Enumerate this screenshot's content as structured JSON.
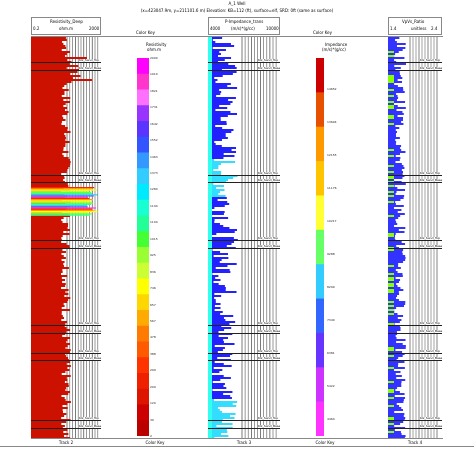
{
  "header": {
    "well_name": "A_1 Well",
    "info_line": "(x=423047.9m, y=211101.6 m) Elevation: KB=112 (ft), surface=elf, SRD: 0ft (same as surface)"
  },
  "tracks": [
    {
      "id": "track2",
      "log_name": "Resistivity_Deep",
      "unit": "ohm.m",
      "scale_left": "0.2",
      "scale_right": "2000",
      "footer": "Track 2"
    },
    {
      "id": "colorkey1",
      "title": "Color Key",
      "property": "Resistivity",
      "unit": "ohm.m",
      "footer": "Color Key",
      "ticks": [
        "2000",
        "1910",
        "1821",
        "1731",
        "1642",
        "1552",
        "1463",
        "1373",
        "1284",
        "1194",
        "1104",
        "1015",
        "925",
        "836",
        "746",
        "657",
        "567",
        "478",
        "388",
        "299",
        "209",
        "120",
        "30",
        "2"
      ],
      "colors": [
        "#ff00ff",
        "#ff35cc",
        "#ff70ff",
        "#9933ff",
        "#5a35ff",
        "#3355ff",
        "#3399ff",
        "#33ccff",
        "#00eaff",
        "#19ffd4",
        "#22ff99",
        "#44ff33",
        "#99ff33",
        "#ccff33",
        "#ffff00",
        "#ffd700",
        "#ffaa00",
        "#ff7a00",
        "#ff5a00",
        "#ff3300",
        "#ee2000",
        "#dd1400",
        "#cc0000",
        "#bb0000"
      ]
    },
    {
      "id": "track3",
      "log_name": "P-Impedance_trans",
      "unit": "(m/s)*(g/cc)",
      "scale_left": "4000",
      "scale_right": "10000",
      "footer": "Track 3"
    },
    {
      "id": "colorkey2",
      "title": "Color Key",
      "property": "Impedance",
      "unit": "(m/s)*(g/cc)",
      "footer": "Color Key",
      "ticks": [
        "14652",
        "13694",
        "12155",
        "11176",
        "10217",
        "9288",
        "8299",
        "7340",
        "6381",
        "5422",
        "4464"
      ],
      "colors": [
        "#cc0000",
        "#e65000",
        "#ff9900",
        "#ffc400",
        "#ffff33",
        "#66ff66",
        "#33ccff",
        "#3366ff",
        "#6633ff",
        "#cc33ff",
        "#ff33ff"
      ]
    },
    {
      "id": "track4",
      "log_name": "VpVs_Ratio",
      "unit": "unitless",
      "scale_left": "1.4",
      "scale_right": "2.4",
      "footer": "Track 4"
    }
  ],
  "markers": [
    {
      "label": "KIz_Sand_Top"
    },
    {
      "label": "KIz_Sand_Base"
    },
    {
      "label": "KIz_Sand_Top"
    },
    {
      "label": "KIz_Sand_Base"
    },
    {
      "label": "KIz_Sand_Top"
    },
    {
      "label": "KIz_Sand_Base"
    },
    {
      "label": "KIz_Sand_Top"
    },
    {
      "label": "KIz_Sand_Base"
    },
    {
      "label": "KIz_Sand_Top"
    },
    {
      "label": "KIz_Sand_Base"
    },
    {
      "label": "KIz_Sand_Top"
    },
    {
      "label": "KIz_Sand_Base"
    }
  ],
  "colors": {
    "resistivity_fill": "#cc1100",
    "impedance_blue": "#2222ff",
    "impedance_cyan": "#33ddff",
    "vpvs_blue": "#3333ff",
    "vpvs_green": "#88ff00",
    "gridline": "#444444"
  }
}
